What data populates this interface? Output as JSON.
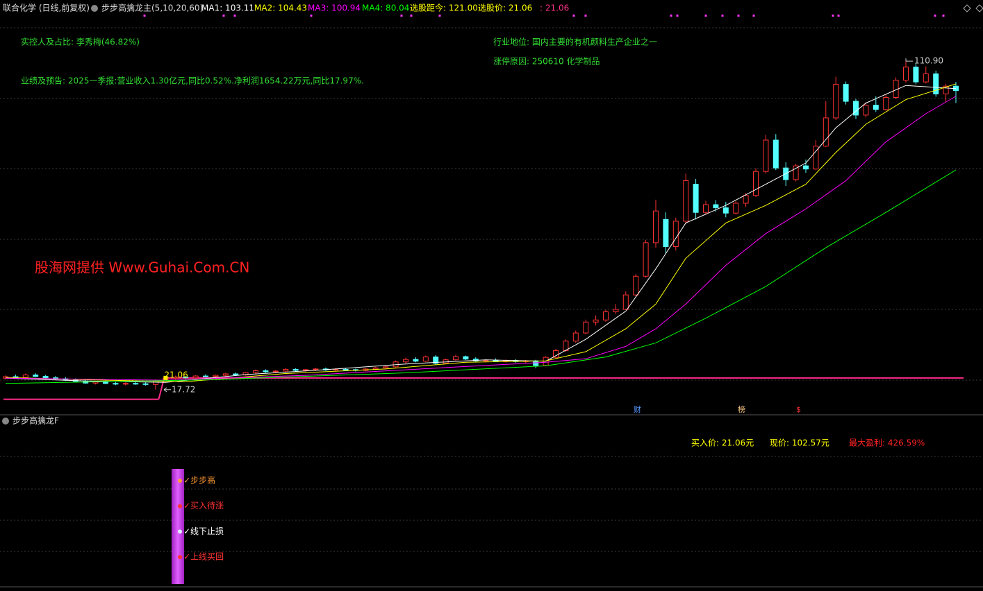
{
  "header": {
    "title": "联合化学 (日线,前复权)",
    "indicator": "步步高擒龙主(5,10,20,60)",
    "items": [
      {
        "text": "MA1: 103.11",
        "color": "#ffffff"
      },
      {
        "text": "MA2: 104.43",
        "color": "#ffff00"
      },
      {
        "text": "MA3: 100.94",
        "color": "#ff00ff"
      },
      {
        "text": "MA4: 80.04",
        "color": "#00ff00"
      },
      {
        "text": "选股距今: 121.00",
        "color": "#ffff00"
      },
      {
        "text": "选股价: 21.06",
        "color": "#ffff00"
      },
      {
        "text": ": 21.06",
        "color": "#ff3388"
      }
    ]
  },
  "annotations": [
    {
      "text": "实控人及占比: 李秀梅(46.82%)"
    },
    {
      "text": "业绩及预告: 2025一季报:营业收入1.30亿元,同比0.52%.净利润1654.22万元,同比17.97%."
    },
    {
      "text": "行业地位: 国内主要的有机颜料生产企业之一"
    },
    {
      "text": "涨停原因: 250610 化学制品"
    }
  ],
  "watermark": "股海网提供 Www.Guhai.Com.CN",
  "price_chart": {
    "ylim": [
      10.6,
      124.3
    ],
    "candles": [
      [
        21,
        21.8,
        20.6,
        21.4
      ],
      [
        21.4,
        22,
        21,
        21.2
      ],
      [
        21.2,
        22.3,
        20.9,
        21.9
      ],
      [
        21.9,
        22.4,
        21.3,
        21.5
      ],
      [
        21.5,
        21.9,
        20.8,
        21.1
      ],
      [
        21.1,
        21.6,
        20.5,
        20.8
      ],
      [
        20.8,
        21.3,
        20.2,
        20.4
      ],
      [
        20.4,
        20.9,
        19.8,
        20.1
      ],
      [
        20.1,
        20.5,
        19.4,
        19.6
      ],
      [
        19.6,
        20.2,
        19.2,
        19.9
      ],
      [
        19.9,
        20.3,
        19.3,
        19.5
      ],
      [
        19.5,
        19.9,
        19,
        19.3
      ],
      [
        19.3,
        19.8,
        18.9,
        19.5
      ],
      [
        19.5,
        19.9,
        19.1,
        19.4
      ],
      [
        19.4,
        19.8,
        18.9,
        19.2
      ],
      [
        19.2,
        20.6,
        17.72,
        20.4
      ],
      [
        20.4,
        21.3,
        20.2,
        21.06
      ],
      [
        21,
        21.7,
        20.6,
        21.3
      ],
      [
        21.3,
        21.6,
        20.8,
        21.1
      ],
      [
        21.1,
        21.8,
        20.9,
        21.6
      ],
      [
        21.6,
        22.1,
        21.2,
        21.5
      ],
      [
        21.5,
        22,
        21.1,
        21.8
      ],
      [
        21.8,
        22.5,
        21.5,
        22.2
      ],
      [
        22.2,
        22.6,
        21.7,
        21.9
      ],
      [
        21.9,
        22.8,
        21.7,
        22.6
      ],
      [
        22.6,
        23.4,
        22.3,
        23.1
      ],
      [
        23.1,
        23.5,
        22.5,
        22.8
      ],
      [
        22.8,
        23.3,
        22.4,
        23
      ],
      [
        23,
        23.9,
        22.8,
        23.5
      ],
      [
        23.5,
        23.8,
        22.9,
        23.2
      ],
      [
        23.2,
        23.6,
        22.8,
        23.4
      ],
      [
        23.4,
        23.9,
        23,
        23.6
      ],
      [
        23.6,
        24,
        23.1,
        23.3
      ],
      [
        23.3,
        23.8,
        23,
        23.5
      ],
      [
        23.5,
        23.9,
        23.1,
        23.4
      ],
      [
        23.4,
        23.7,
        22.9,
        23.2
      ],
      [
        23.2,
        23.8,
        23,
        23.6
      ],
      [
        23.6,
        24.2,
        23.3,
        23.9
      ],
      [
        23.9,
        24.5,
        23.6,
        24.2
      ],
      [
        24.2,
        26,
        24,
        25.6
      ],
      [
        25.6,
        26.8,
        25.2,
        26.3
      ],
      [
        26.3,
        26.9,
        25.5,
        25.8
      ],
      [
        25.8,
        27.4,
        25.6,
        27
      ],
      [
        27,
        27.5,
        24.8,
        25.2
      ],
      [
        25.2,
        26.5,
        25,
        26.2
      ],
      [
        26.2,
        27.6,
        26,
        27.1
      ],
      [
        27.1,
        27.4,
        26.1,
        26.4
      ],
      [
        26.4,
        26.9,
        25.6,
        25.9
      ],
      [
        25.9,
        26.4,
        25.5,
        26.1
      ],
      [
        26.1,
        26.6,
        25.6,
        25.8
      ],
      [
        25.8,
        26.3,
        25.4,
        26
      ],
      [
        26,
        26.4,
        25.4,
        25.7
      ],
      [
        25.7,
        26.2,
        25.3,
        25.9
      ],
      [
        25.9,
        26.2,
        23.8,
        24.6
      ],
      [
        24.6,
        27.2,
        24.4,
        26.9
      ],
      [
        26.9,
        29.3,
        26.7,
        28.8
      ],
      [
        28.8,
        32,
        28.5,
        31.5
      ],
      [
        31.5,
        34.5,
        31,
        33.8
      ],
      [
        33.8,
        37.6,
        33.5,
        36.9
      ],
      [
        36.9,
        38.8,
        35.9,
        37.5
      ],
      [
        37.5,
        40.4,
        37,
        39.8
      ],
      [
        39.8,
        42,
        39.2,
        40.5
      ],
      [
        40.5,
        45.6,
        40.3,
        44.6
      ],
      [
        44.6,
        50.5,
        44.2,
        49.9
      ],
      [
        49.9,
        60.2,
        49.5,
        59.4
      ],
      [
        59.4,
        71.6,
        58,
        68.4
      ],
      [
        66,
        68,
        56.5,
        58.3
      ],
      [
        58.3,
        66.5,
        57.2,
        65.5
      ],
      [
        65.5,
        79,
        64.8,
        77
      ],
      [
        76,
        77.5,
        66,
        68
      ],
      [
        68,
        71.3,
        67.3,
        70.2
      ],
      [
        70.2,
        71.5,
        68.2,
        69.3
      ],
      [
        69.3,
        71,
        66.6,
        67.8
      ],
      [
        67.8,
        71.2,
        67.4,
        70.6
      ],
      [
        70.6,
        73.5,
        69.5,
        72.8
      ],
      [
        72.8,
        80.5,
        72.4,
        79.6
      ],
      [
        79.6,
        90,
        79,
        88.5
      ],
      [
        88.5,
        90.2,
        80,
        80.6
      ],
      [
        80.6,
        82.2,
        75.5,
        77.3
      ],
      [
        77.3,
        81.8,
        76.8,
        81.2
      ],
      [
        81.2,
        83,
        79.2,
        80.3
      ],
      [
        80.3,
        88.5,
        80,
        86.8
      ],
      [
        86.8,
        99.5,
        86.5,
        94.8
      ],
      [
        94.8,
        106.5,
        94.2,
        104.3
      ],
      [
        104.3,
        105.1,
        98.6,
        99.5
      ],
      [
        99.5,
        100.2,
        94.5,
        95.6
      ],
      [
        95.6,
        99.2,
        94.9,
        98.4
      ],
      [
        98.4,
        100.9,
        96.5,
        97.2
      ],
      [
        97.2,
        101.4,
        96.8,
        100.6
      ],
      [
        100.6,
        106.3,
        100.1,
        105.5
      ],
      [
        105.5,
        110.9,
        104.8,
        109.2
      ],
      [
        109.2,
        110.3,
        104.3,
        105
      ],
      [
        105,
        109.4,
        104.6,
        107.3
      ],
      [
        107.3,
        108.2,
        100.8,
        101.6
      ],
      [
        101.6,
        104.5,
        99.2,
        103.8
      ],
      [
        103.8,
        105,
        99,
        102.57
      ]
    ],
    "ma": [
      {
        "name": "MA1",
        "color": "#ffffff",
        "x": [
          0,
          8,
          16,
          24,
          32,
          40,
          48,
          54,
          58,
          62,
          65,
          68,
          72,
          76,
          80,
          83,
          86,
          90,
          95
        ],
        "values": [
          21,
          20.2,
          19.8,
          22,
          23.4,
          25,
          26.2,
          25.8,
          32,
          40,
          52,
          65,
          70,
          76,
          82,
          92,
          99,
          104,
          103.11
        ]
      },
      {
        "name": "MA2",
        "color": "#ffff00",
        "x": [
          0,
          10,
          18,
          28,
          38,
          46,
          54,
          58,
          62,
          65,
          68,
          72,
          76,
          80,
          83,
          86,
          90,
          95
        ],
        "values": [
          21.2,
          20.4,
          20,
          22.3,
          23.6,
          25.5,
          25.9,
          28.5,
          35,
          42,
          55,
          65,
          70,
          76,
          85,
          93,
          100,
          104.43
        ]
      },
      {
        "name": "MA3",
        "color": "#ff00ff",
        "x": [
          0,
          16,
          30,
          44,
          54,
          58,
          62,
          65,
          68,
          72,
          76,
          80,
          84,
          88,
          92,
          95
        ],
        "values": [
          21,
          20.4,
          21.8,
          24,
          25.5,
          26.5,
          30,
          35,
          42,
          53,
          62,
          69,
          77,
          88,
          96,
          100.94
        ]
      },
      {
        "name": "MA4",
        "color": "#00ff00",
        "x": [
          0,
          20,
          40,
          54,
          60,
          65,
          70,
          76,
          82,
          88,
          95
        ],
        "values": [
          19.5,
          20.5,
          22.5,
          24.5,
          27,
          31,
          38,
          47,
          58,
          68,
          80.04
        ]
      }
    ],
    "buy_price": 21.06,
    "buy_index": 16,
    "buy_label": "21.06",
    "prior_line": 15,
    "low_index": 15,
    "low_label": "17.72",
    "high_index": 90,
    "high_label": "110.90",
    "markers": [
      {
        "text": "财",
        "color": "#5599ff"
      },
      {
        "text": "榜",
        "color": "#ffcc88"
      },
      {
        "text": "$",
        "color": "#ff3333"
      }
    ]
  },
  "lower_panel": {
    "title": "步步高擒龙F",
    "stats": [
      {
        "text": "买入价: 21.06元",
        "color": "#ffff00"
      },
      {
        "text": "现价: 102.57元",
        "color": "#ffff00"
      },
      {
        "text": "最大盈利: 426.59%",
        "color": "#ff2222"
      }
    ],
    "signals": [
      {
        "text": "✓步步高",
        "color": "#ff9933",
        "dot": "#ff9933"
      },
      {
        "text": "✓买入待涨",
        "color": "#ff3333",
        "dot": "#ff3333"
      },
      {
        "text": "✓线下止损",
        "color": "#ffffff",
        "dot": "#ddeeff"
      },
      {
        "text": "✓上线买回",
        "color": "#ff3333",
        "dot": "#ff3333"
      }
    ]
  }
}
